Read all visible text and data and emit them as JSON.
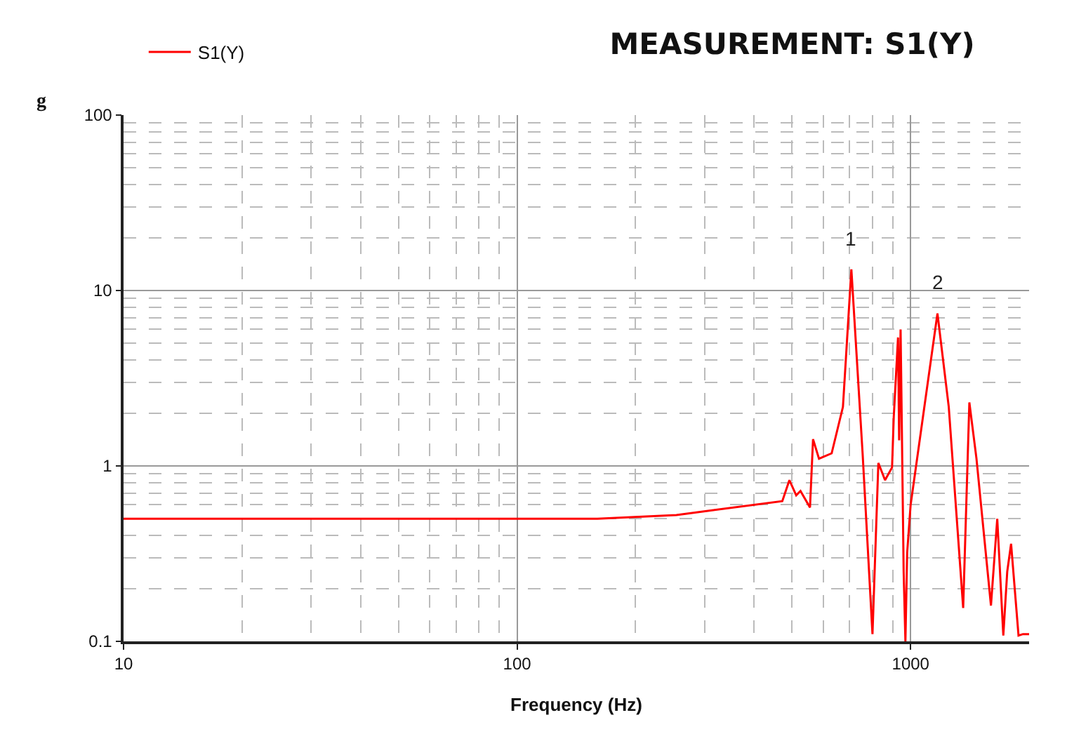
{
  "chart_data": {
    "type": "line",
    "title": "MEASUREMENT: S1(Y)",
    "xlabel": "Frequency (Hz)",
    "ylabel": "g",
    "log": "xy",
    "grid": true,
    "legend": "top left",
    "marker": "none",
    "line_style": "solid",
    "xlim": [
      10,
      2000
    ],
    "xticks": [
      10,
      100,
      1000
    ],
    "ylim": [
      0.1,
      100
    ],
    "yticks": [
      0.1,
      1,
      10,
      100
    ],
    "x": [
      10,
      50,
      100,
      160,
      254,
      472,
      492,
      512,
      525,
      555,
      565,
      585,
      630,
      673,
      707,
      755,
      800,
      828,
      861,
      897,
      906,
      929,
      935,
      943,
      960,
      970,
      980,
      1000,
      1170,
      1250,
      1360,
      1410,
      1470,
      1600,
      1660,
      1720,
      1760,
      1800,
      1880,
      1930,
      2000
    ],
    "series": [
      {
        "name": "S1(Y)",
        "color": "#ff0000",
        "values": [
          0.5,
          0.5,
          0.5,
          0.5,
          0.525,
          0.63,
          0.83,
          0.68,
          0.72,
          0.58,
          1.42,
          1.1,
          1.18,
          2.17,
          13.2,
          1.18,
          0.11,
          1.04,
          0.83,
          0.98,
          1.9,
          5.4,
          1.4,
          6.0,
          0.25,
          0.1,
          0.32,
          0.6,
          7.4,
          2.17,
          0.155,
          2.3,
          1.1,
          0.16,
          0.5,
          0.108,
          0.25,
          0.36,
          0.108,
          0.11,
          0.11
        ]
      }
    ],
    "annotations": [
      {
        "text": "1",
        "x": 707,
        "y": 13.2
      },
      {
        "text": "2",
        "x": 1170,
        "y": 7.4
      }
    ]
  }
}
